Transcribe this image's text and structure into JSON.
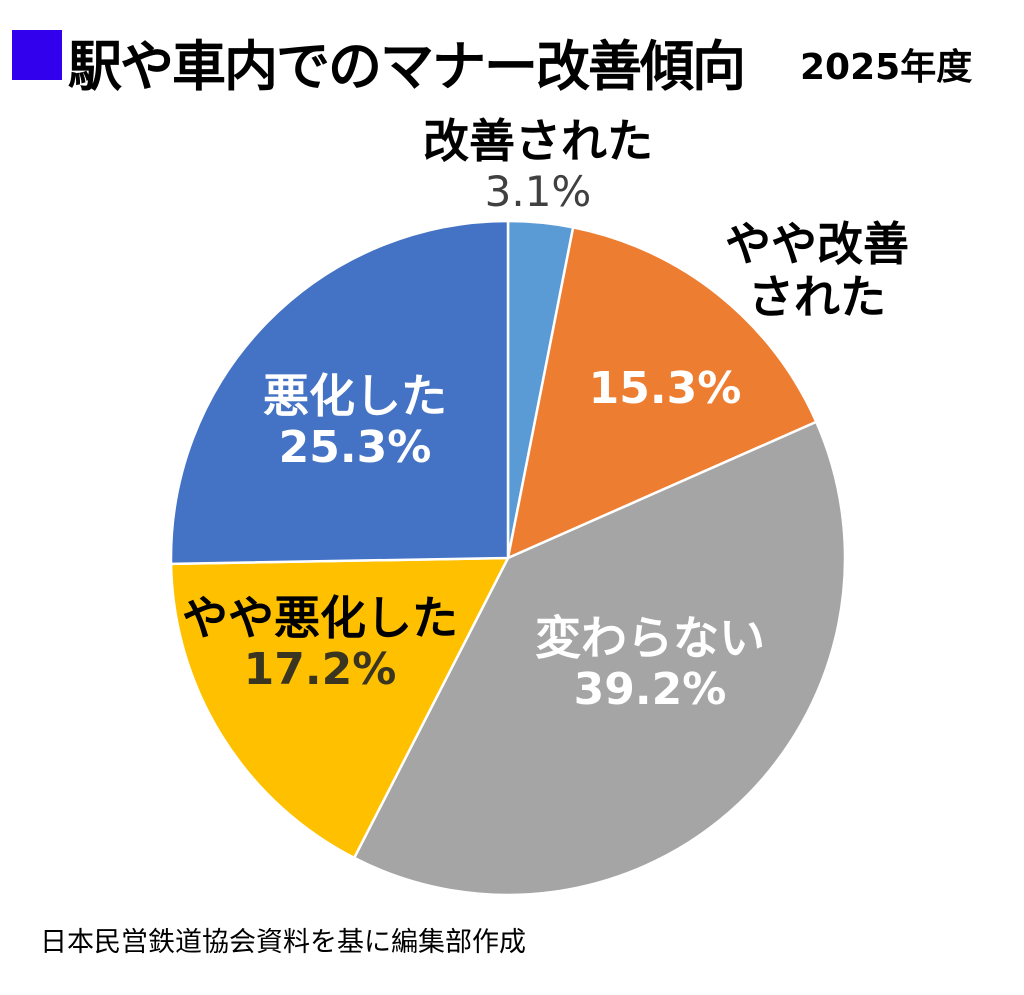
{
  "title": {
    "main": "駅や車内でのマナー改善傾向",
    "year": "2025年度",
    "marker_color": "#3300ee"
  },
  "labels": {
    "improved": {
      "name": "改善された",
      "value": "3.1%"
    },
    "somewhat_improved": {
      "name_line1": "やや改善",
      "name_line2": "された",
      "value": "15.3%"
    },
    "unchanged": {
      "name": "変わらない",
      "value": "39.2%"
    },
    "somewhat_worse": {
      "name": "やや悪化した",
      "value": "17.2%"
    },
    "worse": {
      "name": "悪化した",
      "value": "25.3%"
    }
  },
  "source": "日本民営鉄道協会資料を基に編集部作成",
  "chart_data": {
    "type": "pie",
    "title": "駅や車内でのマナー改善傾向 2025年度",
    "start_angle": "12 o'clock, clockwise",
    "categories": [
      "改善された",
      "やや改善された",
      "変わらない",
      "やや悪化した",
      "悪化した"
    ],
    "values": [
      3.1,
      15.3,
      39.2,
      17.2,
      25.3
    ],
    "unit": "%",
    "colors": [
      "#5b9bd5",
      "#ed7d31",
      "#a5a5a5",
      "#ffc000",
      "#4472c4"
    ],
    "legend": "none (direct labels)",
    "source": "日本民営鉄道協会資料を基に編集部作成"
  }
}
